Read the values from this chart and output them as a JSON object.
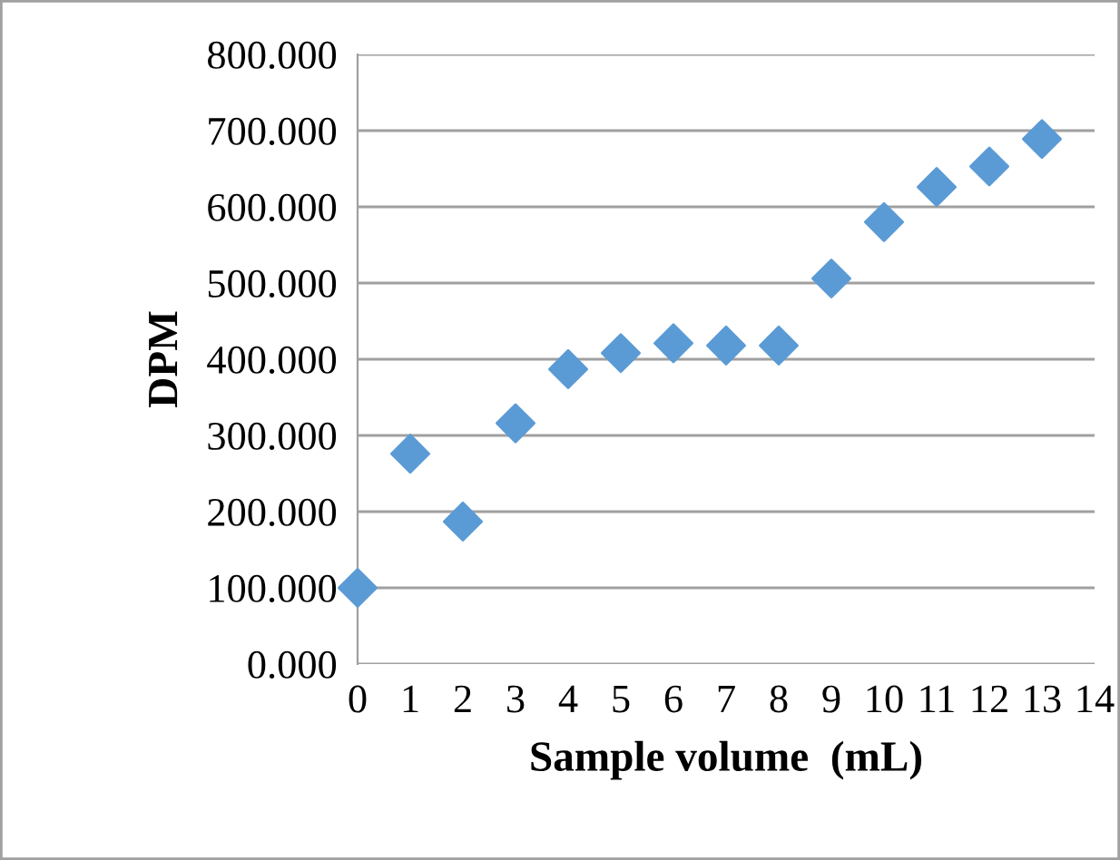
{
  "chart_data": {
    "type": "scatter",
    "xlabel": "Sample volume  (mL)",
    "ylabel": "DPM",
    "x": [
      0,
      1,
      2,
      3,
      4,
      5,
      6,
      7,
      8,
      9,
      10,
      11,
      12,
      13
    ],
    "series": [
      {
        "color": "#5b9bd5",
        "values": [
          100,
          276,
          187,
          316,
          387,
          408,
          421,
          418,
          418,
          506,
          580,
          626,
          653,
          689
        ]
      }
    ],
    "xlim": [
      0,
      14
    ],
    "xticks": [
      0,
      1,
      2,
      3,
      4,
      5,
      6,
      7,
      8,
      9,
      10,
      11,
      12,
      13,
      14
    ],
    "ylim": [
      0,
      800
    ],
    "yticks": [
      {
        "value": 0,
        "label": "0.000"
      },
      {
        "value": 100,
        "label": "100.000"
      },
      {
        "value": 200,
        "label": "200.000"
      },
      {
        "value": 300,
        "label": "300.000"
      },
      {
        "value": 400,
        "label": "400.000"
      },
      {
        "value": 500,
        "label": "500.000"
      },
      {
        "value": 600,
        "label": "600.000"
      },
      {
        "value": 700,
        "label": "700.000"
      },
      {
        "value": 800,
        "label": "800.000"
      }
    ],
    "grid": "y",
    "marker": "diamond"
  }
}
